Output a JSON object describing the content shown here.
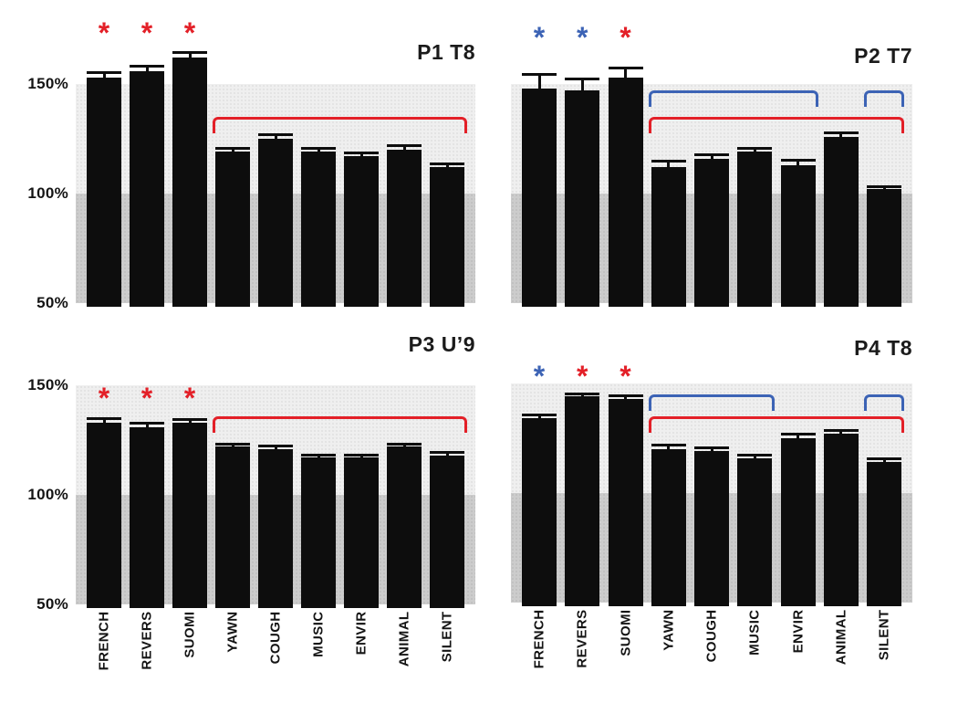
{
  "figure": {
    "background": "#ffffff",
    "marker_glyph": "*",
    "bands": [
      {
        "from": 100,
        "to": 150,
        "shade": "light"
      },
      {
        "from": 50,
        "to": 100,
        "shade": "dark"
      }
    ]
  },
  "colors": {
    "bar": "#0d0d0d",
    "band_upper": "#efefef",
    "band_lower": "#cccccc",
    "significance_red": "#e32028",
    "significance_blue": "#3c63b5",
    "axis_text": "#141414",
    "title_text": "#1b1b1b"
  },
  "chart_data": [
    {
      "type": "bar",
      "title": "P1 T8",
      "panel_position": "top-left",
      "unit": "%",
      "ylim": [
        50,
        185
      ],
      "categories": [
        "FRENCH",
        "REVERS",
        "SUOMI",
        "YAWN",
        "COUGH",
        "MUSIC",
        "ENVIR",
        "ANIMAL",
        "SILENT"
      ],
      "values": [
        153,
        156,
        162,
        119,
        125,
        119,
        117,
        120,
        112
      ],
      "errors": [
        2,
        2,
        2,
        1.5,
        1.5,
        1.5,
        1.5,
        1.5,
        1.5
      ],
      "yticks": [
        {
          "label": "150%",
          "value": 150
        },
        {
          "label": "100%",
          "value": 100
        },
        {
          "label": "50%",
          "value": 50
        }
      ],
      "show_y_labels": true,
      "show_x_labels": false,
      "sig_markers": [
        {
          "category": "FRENCH",
          "color": "red",
          "level": 174
        },
        {
          "category": "REVERS",
          "color": "red",
          "level": 174
        },
        {
          "category": "SUOMI",
          "color": "red",
          "level": 174
        }
      ],
      "brackets": [
        {
          "from": "YAWN",
          "to": "SILENT",
          "color": "red",
          "level": 135
        }
      ]
    },
    {
      "type": "bar",
      "title": "P2 T7",
      "panel_position": "top-right",
      "unit": "%",
      "ylim": [
        50,
        185
      ],
      "categories": [
        "FRENCH",
        "REVERS",
        "SUOMI",
        "YAWN",
        "COUGH",
        "MUSIC",
        "ENVIR",
        "ANIMAL",
        "SILENT"
      ],
      "values": [
        148,
        147,
        153,
        112,
        116,
        119,
        113,
        126,
        102
      ],
      "errors": [
        6,
        5,
        4,
        2.5,
        1.5,
        1.5,
        2,
        1.5,
        1
      ],
      "yticks": [
        {
          "label": "150%",
          "value": 150
        },
        {
          "label": "100%",
          "value": 100
        },
        {
          "label": "50%",
          "value": 50
        }
      ],
      "show_y_labels": false,
      "show_x_labels": false,
      "sig_markers": [
        {
          "category": "FRENCH",
          "color": "blue",
          "level": 172
        },
        {
          "category": "REVERS",
          "color": "blue",
          "level": 172
        },
        {
          "category": "SUOMI",
          "color": "red",
          "level": 172
        }
      ],
      "brackets": [
        {
          "from": "YAWN",
          "to": "ENVIR",
          "color": "blue",
          "level": 147
        },
        {
          "from": "SILENT",
          "to": "SILENT",
          "color": "blue",
          "level": 147
        },
        {
          "from": "YAWN",
          "to": "SILENT",
          "color": "red",
          "level": 135
        }
      ]
    },
    {
      "type": "bar",
      "title": "P3 U’9",
      "panel_position": "bottom-left",
      "unit": "%",
      "ylim": [
        50,
        185
      ],
      "categories": [
        "FRENCH",
        "REVERS",
        "SUOMI",
        "YAWN",
        "COUGH",
        "MUSIC",
        "ENVIR",
        "ANIMAL",
        "SILENT"
      ],
      "values": [
        133,
        131,
        133,
        122,
        121,
        117,
        117,
        122,
        118
      ],
      "errors": [
        1.5,
        1.5,
        1,
        1,
        1,
        0.8,
        0.8,
        1,
        1
      ],
      "yticks": [
        {
          "label": "150%",
          "value": 150
        },
        {
          "label": "100%",
          "value": 100
        },
        {
          "label": "50%",
          "value": 50
        }
      ],
      "show_y_labels": true,
      "show_x_labels": true,
      "sig_markers": [
        {
          "category": "FRENCH",
          "color": "red",
          "level": 145
        },
        {
          "category": "REVERS",
          "color": "red",
          "level": 145
        },
        {
          "category": "SUOMI",
          "color": "red",
          "level": 145
        }
      ],
      "brackets": [
        {
          "from": "YAWN",
          "to": "SILENT",
          "color": "red",
          "level": 136
        }
      ]
    },
    {
      "type": "bar",
      "title": "P4 T8",
      "panel_position": "bottom-right",
      "unit": "%",
      "ylim": [
        50,
        185
      ],
      "categories": [
        "FRENCH",
        "REVERS",
        "SUOMI",
        "YAWN",
        "COUGH",
        "MUSIC",
        "ENVIR",
        "ANIMAL",
        "SILENT"
      ],
      "values": [
        134,
        144,
        143,
        120,
        119,
        116,
        125,
        127,
        114
      ],
      "errors": [
        1.5,
        1,
        1,
        1.5,
        1.5,
        1,
        1.5,
        1.5,
        1.5
      ],
      "yticks": [
        {
          "label": "150%",
          "value": 150
        },
        {
          "label": "100%",
          "value": 100
        },
        {
          "label": "50%",
          "value": 50
        }
      ],
      "show_y_labels": false,
      "show_x_labels": true,
      "sig_markers": [
        {
          "category": "FRENCH",
          "color": "blue",
          "level": 154
        },
        {
          "category": "REVERS",
          "color": "red",
          "level": 154
        },
        {
          "category": "SUOMI",
          "color": "red",
          "level": 154
        }
      ],
      "brackets": [
        {
          "from": "YAWN",
          "to": "MUSIC",
          "color": "blue",
          "level": 145
        },
        {
          "from": "SILENT",
          "to": "SILENT",
          "color": "blue",
          "level": 145
        },
        {
          "from": "YAWN",
          "to": "SILENT",
          "color": "red",
          "level": 135
        }
      ]
    }
  ]
}
